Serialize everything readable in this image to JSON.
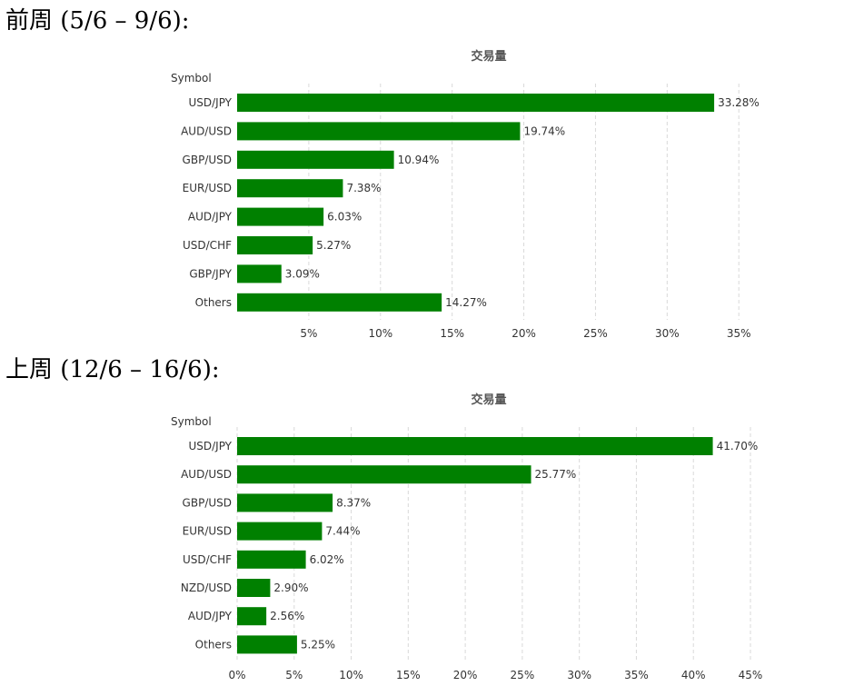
{
  "headings": {
    "week1": "前周 (5/6 – 9/6):",
    "week2": "上周 (12/6 – 16/6):"
  },
  "chart_data": [
    {
      "type": "bar",
      "orientation": "horizontal",
      "title": "交易量",
      "ylabel": "Symbol",
      "xlabel": "",
      "categories": [
        "USD/JPY",
        "AUD/USD",
        "GBP/USD",
        "EUR/USD",
        "AUD/JPY",
        "USD/CHF",
        "GBP/JPY",
        "Others"
      ],
      "values": [
        33.28,
        19.74,
        10.94,
        7.38,
        6.03,
        5.27,
        3.09,
        14.27
      ],
      "value_labels": [
        "33.28%",
        "19.74%",
        "10.94%",
        "7.38%",
        "6.03%",
        "5.27%",
        "3.09%",
        "14.27%"
      ],
      "xlim": [
        0,
        36
      ],
      "xticks": [
        5,
        10,
        15,
        20,
        25,
        30,
        35
      ],
      "xtick_labels": [
        "5%",
        "10%",
        "15%",
        "20%",
        "25%",
        "30%",
        "35%"
      ],
      "grid": true,
      "bar_color": "#008000"
    },
    {
      "type": "bar",
      "orientation": "horizontal",
      "title": "交易量",
      "ylabel": "Symbol",
      "xlabel": "",
      "categories": [
        "USD/JPY",
        "AUD/USD",
        "GBP/USD",
        "EUR/USD",
        "USD/CHF",
        "NZD/USD",
        "AUD/JPY",
        "Others"
      ],
      "values": [
        41.7,
        25.77,
        8.37,
        7.44,
        6.02,
        2.9,
        2.56,
        5.25
      ],
      "value_labels": [
        "41.70%",
        "25.77%",
        "8.37%",
        "7.44%",
        "6.02%",
        "2.90%",
        "2.56%",
        "5.25%"
      ],
      "xlim": [
        0,
        45
      ],
      "xticks": [
        0,
        5,
        10,
        15,
        20,
        25,
        30,
        35,
        40,
        45
      ],
      "xtick_labels": [
        "0%",
        "5%",
        "10%",
        "15%",
        "20%",
        "25%",
        "30%",
        "35%",
        "40%",
        "45%"
      ],
      "grid": true,
      "bar_color": "#008000"
    }
  ]
}
